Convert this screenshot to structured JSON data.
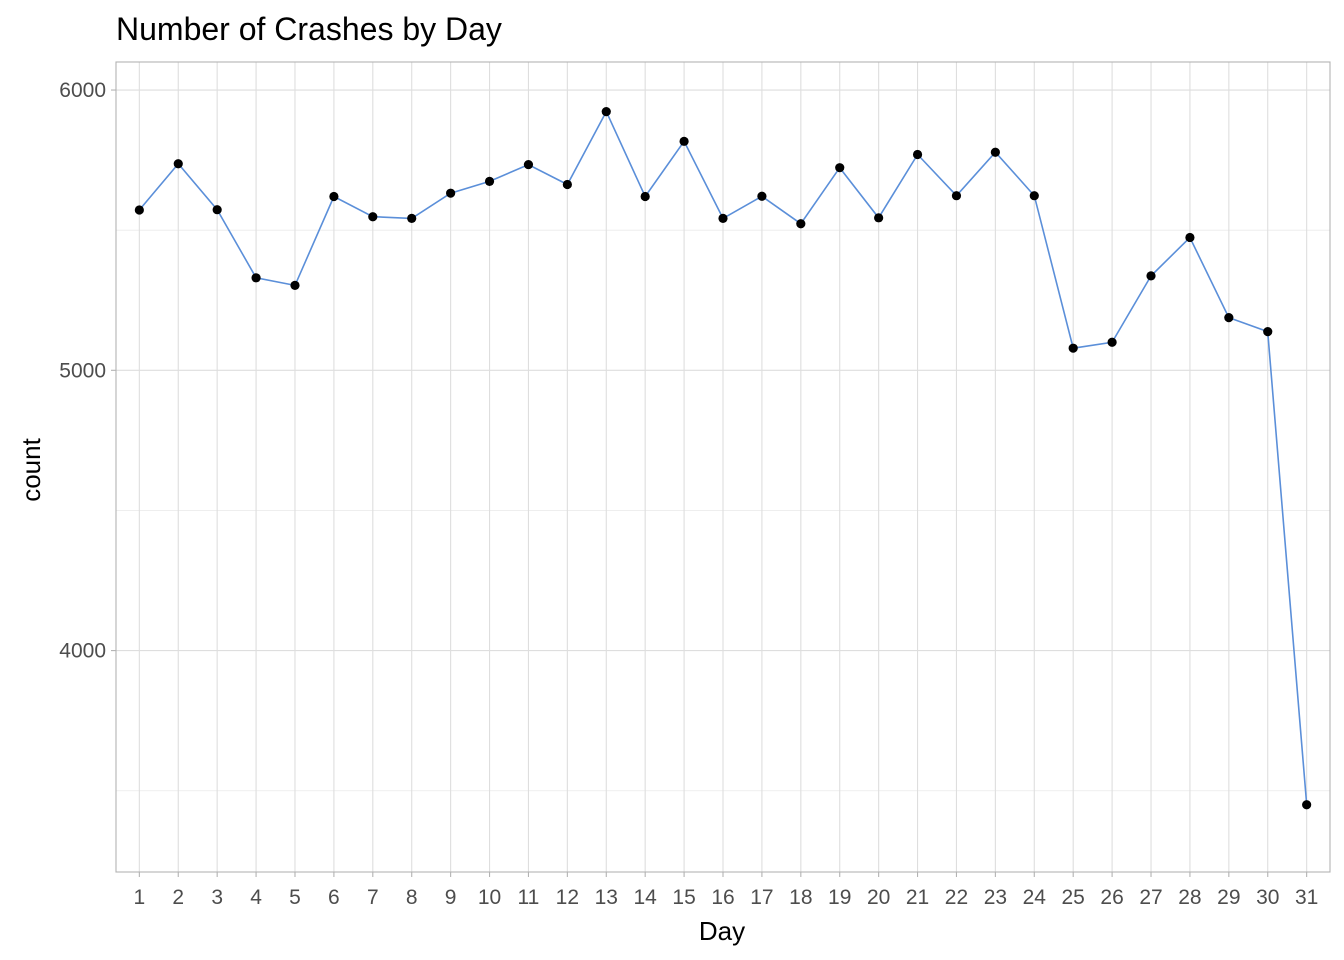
{
  "chart_data": {
    "type": "line",
    "title": "Number of Crashes by Day",
    "xlabel": "Day",
    "ylabel": "count",
    "x": [
      1,
      2,
      3,
      4,
      5,
      6,
      7,
      8,
      9,
      10,
      11,
      12,
      13,
      14,
      15,
      16,
      17,
      18,
      19,
      20,
      21,
      22,
      23,
      24,
      25,
      26,
      27,
      28,
      29,
      30,
      31
    ],
    "values": [
      5572,
      5737,
      5573,
      5330,
      5303,
      5620,
      5548,
      5542,
      5632,
      5674,
      5734,
      5663,
      5923,
      5620,
      5817,
      5542,
      5621,
      5523,
      5723,
      5544,
      5770,
      5623,
      5778,
      5623,
      5079,
      5100,
      5337,
      5474,
      5188,
      5138,
      3450
    ],
    "ylim": [
      3210,
      6100
    ],
    "xlim": [
      0.4,
      31.6
    ],
    "y_ticks": [
      4000,
      5000,
      6000
    ],
    "grid": true,
    "legend": "none",
    "colors": {
      "line": "#5b8fd9",
      "point": "#000000"
    }
  }
}
